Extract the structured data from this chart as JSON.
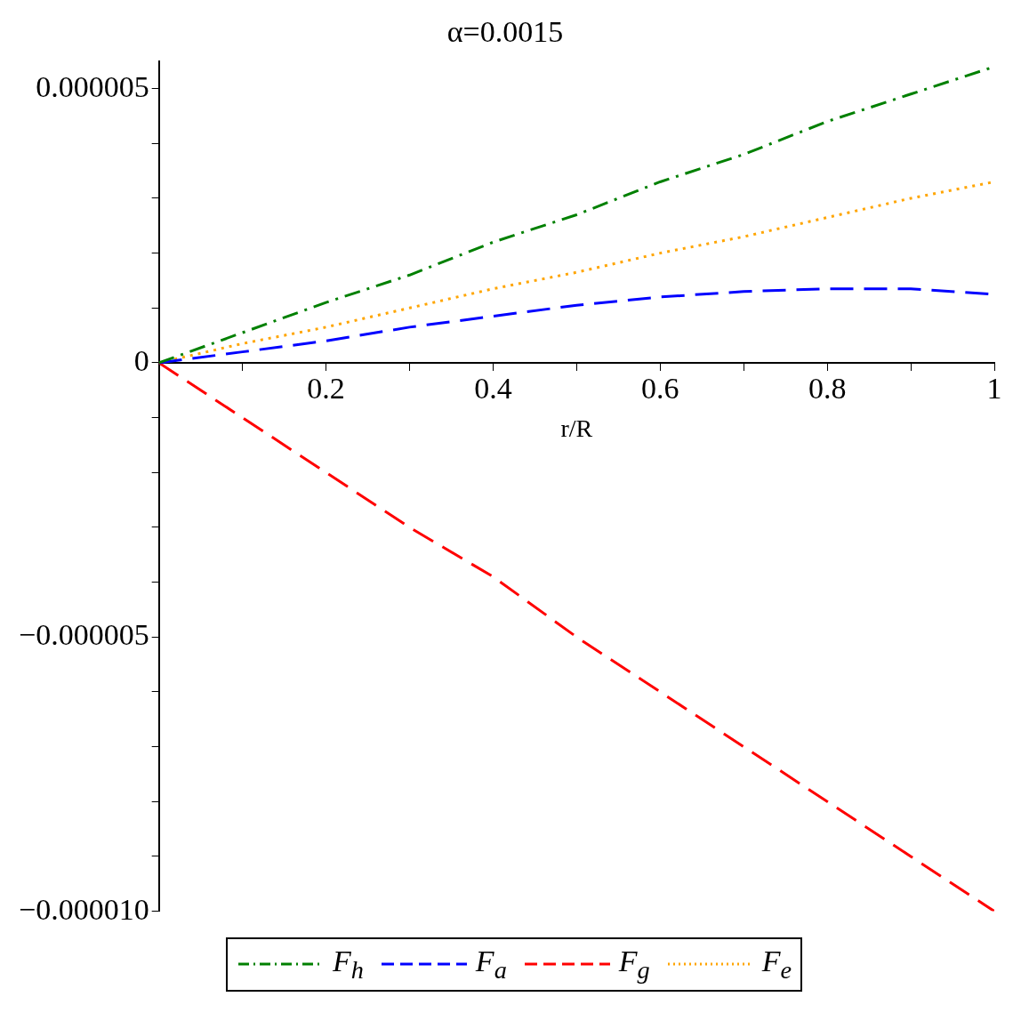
{
  "chart_data": {
    "type": "line",
    "title": "α=0.0015",
    "xlabel": "r/R",
    "x": [
      0,
      0.1,
      0.2,
      0.3,
      0.4,
      0.5,
      0.6,
      0.7,
      0.8,
      0.9,
      1
    ],
    "series": [
      {
        "name": "F$_{h}$",
        "color": "#008000",
        "line_style": "dashdot",
        "values": [
          0,
          5.5e-07,
          1.1e-06,
          1.6e-06,
          2.2e-06,
          2.7e-06,
          3.3e-06,
          3.8e-06,
          4.4e-06,
          4.9e-06,
          5.4e-06
        ]
      },
      {
        "name": "F$_{a}$",
        "color": "#0000ff",
        "line_style": "dashed",
        "values": [
          0,
          2e-07,
          4e-07,
          6.5e-07,
          8.5e-07,
          1.05e-06,
          1.2e-06,
          1.3e-06,
          1.35e-06,
          1.35e-06,
          1.25e-06
        ]
      },
      {
        "name": "F$_{g}$",
        "color": "#ff0000",
        "line_style": "dashed",
        "values": [
          0,
          -1e-06,
          -2e-06,
          -3e-06,
          -3.9e-06,
          -5e-06,
          -6e-06,
          -7e-06,
          -8e-06,
          -9e-06,
          -1e-05
        ]
      },
      {
        "name": "F$_{e}$",
        "color": "#ffa500",
        "line_style": "dotted",
        "values": [
          0,
          3.5e-07,
          6.5e-07,
          1e-06,
          1.35e-06,
          1.65e-06,
          2e-06,
          2.3e-06,
          2.65e-06,
          3e-06,
          3.3e-06
        ]
      }
    ],
    "xlim": [
      0,
      1
    ],
    "xticks": [
      {
        "value": 0.1,
        "label": null
      },
      0.2,
      {
        "value": 0.3,
        "label": null
      },
      0.4,
      {
        "value": 0.5,
        "label": null
      },
      0.6,
      {
        "value": 0.7,
        "label": null
      },
      0.8,
      {
        "value": 0.9,
        "label": null
      },
      1
    ],
    "ylim": [
      -1e-05,
      5.5e-06
    ],
    "yticks": [
      {
        "value": -1e-05,
        "label": "−0.000010"
      },
      {
        "value": -9e-06,
        "label": null
      },
      {
        "value": -8e-06,
        "label": null
      },
      {
        "value": -7e-06,
        "label": null
      },
      {
        "value": -6e-06,
        "label": null
      },
      {
        "value": -5e-06,
        "label": "−0.000005"
      },
      {
        "value": -4e-06,
        "label": null
      },
      {
        "value": -3e-06,
        "label": null
      },
      {
        "value": -2e-06,
        "label": null
      },
      {
        "value": -1e-06,
        "label": null
      },
      0,
      {
        "value": 1e-06,
        "label": null
      },
      {
        "value": 2e-06,
        "label": null
      },
      {
        "value": 3e-06,
        "label": null
      },
      {
        "value": 4e-06,
        "label": null
      },
      {
        "value": 5e-06,
        "label": "0.000005"
      }
    ],
    "grid": false,
    "legend": "bottom",
    "marker": "none"
  }
}
